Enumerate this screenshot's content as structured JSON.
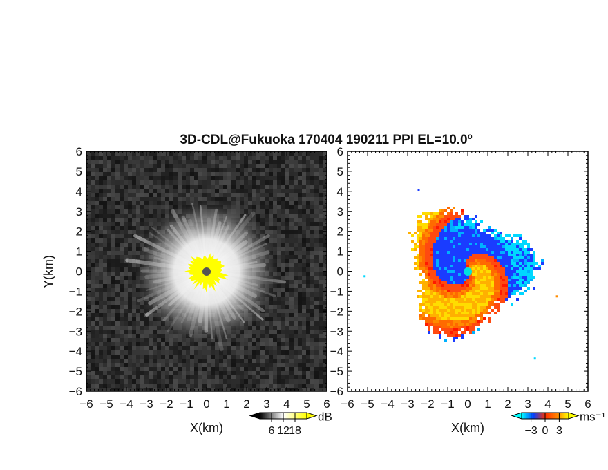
{
  "figure": {
    "title": "3D-CDL@Fukuoka 170404 190211 PPI EL=10.0º"
  },
  "chart_data": [
    {
      "type": "heatmap",
      "panel": "left",
      "quantity_unit": "dB",
      "xlabel": "X(km)",
      "ylabel": "Y(km)",
      "xlim": [
        -6,
        6
      ],
      "ylim": [
        -6,
        6
      ],
      "xticks": [
        "−6",
        "−5",
        "−4",
        "−3",
        "−2",
        "−1",
        "0",
        "1",
        "2",
        "3",
        "4",
        "5",
        "6"
      ],
      "yticks": [
        "6",
        "5",
        "4",
        "3",
        "2",
        "1",
        "0",
        "−1",
        "−2",
        "−3",
        "−4",
        "−5",
        "−6"
      ],
      "colorbar": {
        "unit": "dB",
        "tick_labels": [
          "6",
          "12",
          "18"
        ],
        "tick_values": [
          6,
          12,
          18
        ],
        "range": [
          0,
          24
        ],
        "colors": [
          "#000000",
          "#ffffff",
          "#ffff00"
        ]
      },
      "features": {
        "center": [
          0,
          0
        ],
        "saturated_radius_km": 0.8,
        "bright_halo_radius_km": 3.3,
        "background": "dark-gray-noise"
      }
    },
    {
      "type": "heatmap",
      "panel": "right",
      "quantity_unit": "ms⁻¹",
      "xlabel": "X(km)",
      "ylabel": "",
      "xlim": [
        -6,
        6
      ],
      "ylim": [
        -6,
        6
      ],
      "xticks": [
        "−6",
        "−5",
        "−4",
        "−3",
        "−2",
        "−1",
        "0",
        "1",
        "2",
        "3",
        "4",
        "5",
        "6"
      ],
      "yticks": [
        "6",
        "5",
        "4",
        "3",
        "2",
        "1",
        "0",
        "−1",
        "−2",
        "−3",
        "−4",
        "−5",
        "−6"
      ],
      "colorbar": {
        "unit": "ms⁻¹",
        "tick_labels": [
          "−3",
          "0",
          "3"
        ],
        "tick_values": [
          -3,
          0,
          3
        ],
        "range": [
          -5,
          5
        ],
        "colors": [
          "#00ffff",
          "#0040ff",
          "#ff3000",
          "#ff8000",
          "#ffff00"
        ]
      },
      "features": {
        "center": [
          0,
          0
        ],
        "echo_radius_km": 3.3,
        "pattern": "spiral-doppler-velocity"
      }
    }
  ]
}
